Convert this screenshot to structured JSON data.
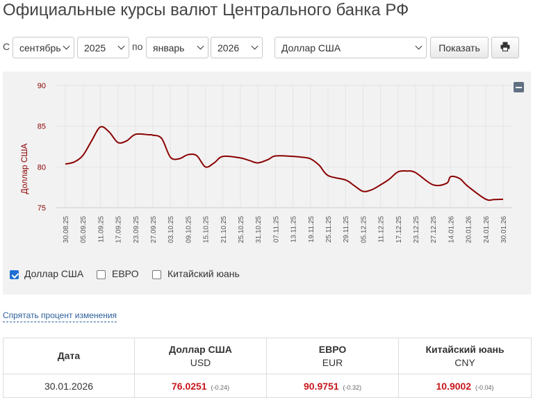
{
  "header": {
    "title": "Официальные курсы валют Центрального банка РФ"
  },
  "filters": {
    "from_label": "С",
    "from_month": "сентябрь",
    "from_year": "2025",
    "to_label": "по",
    "to_month": "январь",
    "to_year": "2026",
    "currency": "Доллар США",
    "show_button": "Показать",
    "print_icon": "printer-icon"
  },
  "chart_data": {
    "type": "line",
    "ylabel": "Доллар США",
    "ylim": [
      75,
      90
    ],
    "yticks": [
      "75",
      "80",
      "85",
      "90"
    ],
    "grid": true,
    "line_color": "#8b0000",
    "x_tick_labels": [
      "30.08.25",
      "05.09.25",
      "11.09.25",
      "17.09.25",
      "23.09.25",
      "27.09.25",
      "03.10.25",
      "09.10.25",
      "15.10.25",
      "21.10.25",
      "25.10.25",
      "31.10.25",
      "07.11.25",
      "13.11.25",
      "19.11.25",
      "25.11.25",
      "29.11.25",
      "05.12.25",
      "11.12.25",
      "17.12.25",
      "23.12.25",
      "27.12.25",
      "14.01.26",
      "20.01.26",
      "24.01.26",
      "30.01.26"
    ],
    "series": [
      {
        "name": "Доллар США",
        "x": [
          "30.08.25",
          "02.09.25",
          "05.09.25",
          "08.09.25",
          "11.09.25",
          "14.09.25",
          "17.09.25",
          "20.09.25",
          "23.09.25",
          "26.09.25",
          "27.09.25",
          "30.09.25",
          "03.10.25",
          "06.10.25",
          "09.10.25",
          "12.10.25",
          "15.10.25",
          "18.10.25",
          "21.10.25",
          "25.10.25",
          "28.10.25",
          "31.10.25",
          "04.11.25",
          "07.11.25",
          "13.11.25",
          "16.11.25",
          "19.11.25",
          "22.11.25",
          "25.11.25",
          "29.11.25",
          "02.12.25",
          "05.12.25",
          "08.12.25",
          "11.12.25",
          "14.12.25",
          "17.12.25",
          "20.12.25",
          "23.12.25",
          "27.12.25",
          "10.01.26",
          "14.01.26",
          "17.01.26",
          "20.01.26",
          "24.01.26",
          "27.01.26",
          "30.01.26"
        ],
        "values": [
          80.35,
          80.6,
          81.4,
          83.2,
          84.9,
          84.3,
          83.0,
          83.2,
          84.0,
          83.95,
          83.9,
          83.5,
          81.2,
          81.0,
          81.5,
          81.4,
          80.0,
          80.5,
          81.3,
          81.1,
          80.8,
          80.5,
          80.9,
          81.35,
          81.3,
          81.2,
          81.0,
          80.2,
          78.95,
          78.4,
          77.7,
          77.0,
          77.2,
          77.8,
          78.5,
          79.4,
          79.5,
          79.3,
          77.8,
          78.0,
          78.8,
          78.6,
          77.6,
          76.05,
          76.0,
          76.03
        ]
      }
    ]
  },
  "legend": {
    "items": [
      {
        "label": "Доллар США",
        "checked": true
      },
      {
        "label": "ЕВРО",
        "checked": false
      },
      {
        "label": "Китайский юань",
        "checked": false
      }
    ]
  },
  "toggle_link": "Спрятать процент изменения",
  "table": {
    "date_header": "Дата",
    "currencies": [
      {
        "name": "Доллар США",
        "code": "USD"
      },
      {
        "name": "ЕВРО",
        "code": "EUR"
      },
      {
        "name": "Китайский юань",
        "code": "CNY"
      }
    ],
    "rows": [
      {
        "date": "30.01.2026",
        "values": [
          {
            "value": "76.0251",
            "change": "(-0.24)"
          },
          {
            "value": "90.9751",
            "change": "(-0.32)"
          },
          {
            "value": "10.9002",
            "change": "(-0.04)"
          }
        ]
      }
    ]
  },
  "colors": {
    "accent_red": "#c8161d",
    "chart_line": "#8b0000",
    "link": "#2b5e9a",
    "checkbox": "#1f6fd4"
  }
}
